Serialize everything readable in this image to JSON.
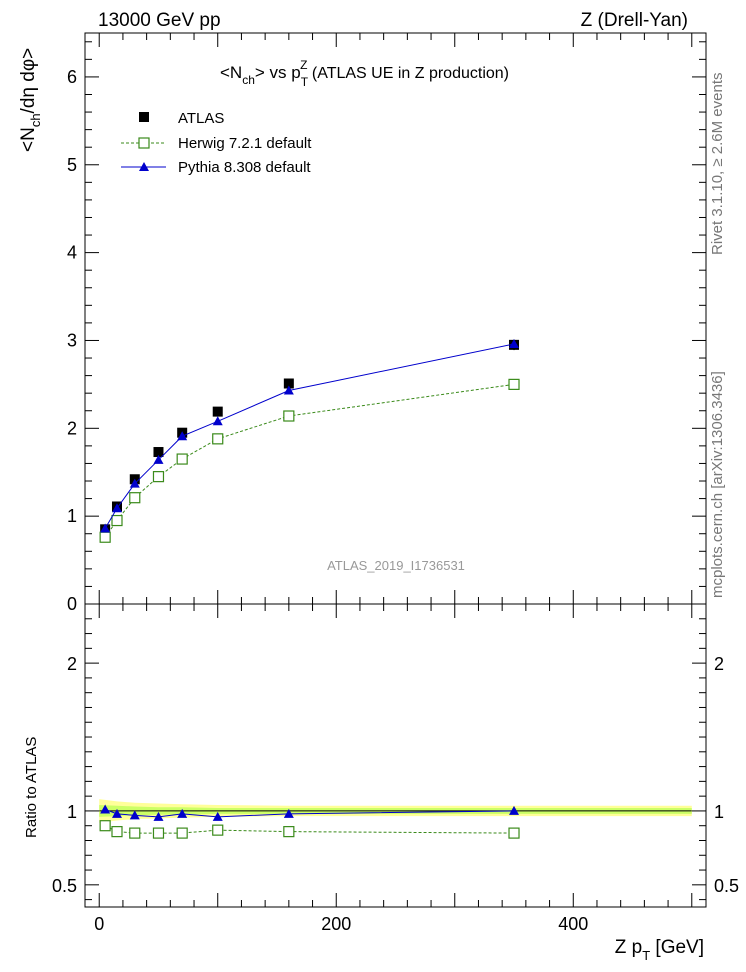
{
  "header": {
    "left": "13000 GeV pp",
    "right": "Z (Drell-Yan)"
  },
  "side_labels": {
    "rivet": "Rivet 3.1.10, ≥ 2.6M events",
    "mcplots": "mcplots.cern.ch [arXiv:1306.3436]"
  },
  "chart_data": [
    {
      "type": "line",
      "title": "<Nch> vs pTZ (ATLAS UE in Z production)",
      "title_parts": {
        "a": "<N",
        "b": "ch",
        "c": "> vs p",
        "d": "T",
        "e": "Z",
        "f": " (ATLAS UE in Z production)"
      },
      "ylabel": "<Nch/dη dφ>",
      "ylabel_parts": {
        "a": "<N",
        "b": "ch",
        "c": "/dη dφ>"
      },
      "xlim": [
        -12,
        512
      ],
      "ylim": [
        0,
        6.5
      ],
      "yticks": [
        0,
        1,
        2,
        3,
        4,
        5,
        6
      ],
      "ytick_labels": [
        "0",
        "1",
        "2",
        "3",
        "4",
        "5",
        "6"
      ],
      "watermark": "ATLAS_2019_I1736531",
      "legend": {
        "position": "top-left",
        "entries": [
          "ATLAS",
          "Herwig 7.2.1 default",
          "Pythia 8.308 default"
        ]
      },
      "series": [
        {
          "name": "ATLAS",
          "style": "marker-square",
          "color": "#000000",
          "x": [
            5,
            15,
            30,
            50,
            70,
            100,
            160,
            350
          ],
          "y": [
            0.85,
            1.11,
            1.42,
            1.73,
            1.95,
            2.19,
            2.51,
            2.95
          ],
          "yerr": [
            0.02,
            0.02,
            0.03,
            0.03,
            0.03,
            0.04,
            0.04,
            0.06
          ]
        },
        {
          "name": "Herwig 7.2.1 default",
          "style": "open-square-dashed",
          "color": "#3a8a1a",
          "x": [
            5,
            15,
            30,
            50,
            70,
            100,
            160,
            350
          ],
          "y": [
            0.76,
            0.95,
            1.21,
            1.45,
            1.65,
            1.88,
            2.14,
            2.5
          ]
        },
        {
          "name": "Pythia 8.308 default",
          "style": "triangle-solid",
          "color": "#0000cc",
          "x": [
            5,
            15,
            30,
            50,
            70,
            100,
            160,
            350
          ],
          "y": [
            0.86,
            1.09,
            1.37,
            1.64,
            1.91,
            2.08,
            2.43,
            2.96
          ]
        }
      ]
    },
    {
      "type": "line",
      "ylabel": "Ratio to ATLAS",
      "xlabel": "Z pT [GeV]",
      "xlabel_parts": {
        "a": "Z p",
        "b": "T",
        "c": " [GeV]"
      },
      "xlim": [
        -12,
        512
      ],
      "ylim": [
        0.35,
        2.4
      ],
      "yticks": [
        0.5,
        1,
        2
      ],
      "ytick_labels": [
        "0.5",
        "1",
        "2"
      ],
      "xticks": [
        0,
        200,
        400
      ],
      "xtick_labels": [
        "0",
        "200",
        "400"
      ],
      "band": {
        "x": [
          0,
          15,
          30,
          50,
          70,
          100,
          160,
          350,
          500
        ],
        "inner": [
          0.04,
          0.035,
          0.03,
          0.025,
          0.025,
          0.02,
          0.02,
          0.02,
          0.02
        ],
        "outer": [
          0.08,
          0.065,
          0.055,
          0.05,
          0.045,
          0.04,
          0.035,
          0.035,
          0.035
        ],
        "inner_color": "#ccff66",
        "outer_color": "#ffff99"
      },
      "series": [
        {
          "name": "Herwig 7.2.1 default",
          "color": "#3a8a1a",
          "x": [
            5,
            15,
            30,
            50,
            70,
            100,
            160,
            350
          ],
          "y": [
            0.9,
            0.86,
            0.85,
            0.85,
            0.85,
            0.87,
            0.86,
            0.85
          ]
        },
        {
          "name": "Pythia 8.308 default",
          "color": "#0000cc",
          "x": [
            5,
            15,
            30,
            50,
            70,
            100,
            160,
            350
          ],
          "y": [
            1.01,
            0.98,
            0.97,
            0.96,
            0.98,
            0.96,
            0.98,
            1.0
          ]
        }
      ]
    }
  ]
}
